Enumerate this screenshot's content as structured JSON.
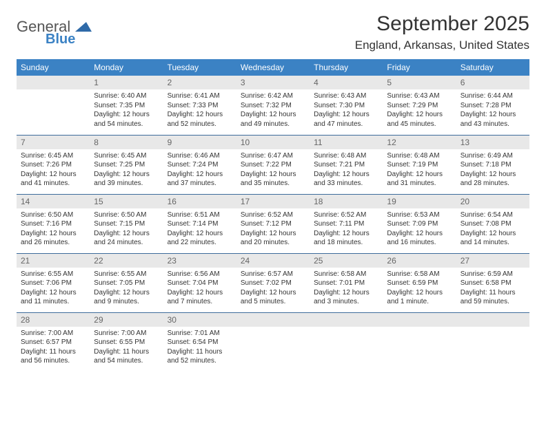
{
  "brand": {
    "general": "General",
    "blue": "Blue"
  },
  "title": "September 2025",
  "location": "England, Arkansas, United States",
  "colors": {
    "header_bg": "#3b82c4",
    "header_fg": "#ffffff",
    "daynum_bg": "#e8e8e8",
    "daynum_fg": "#666666",
    "rule": "#3b6a9a",
    "text": "#333333"
  },
  "weekdays": [
    "Sunday",
    "Monday",
    "Tuesday",
    "Wednesday",
    "Thursday",
    "Friday",
    "Saturday"
  ],
  "weeks": [
    [
      {
        "n": "",
        "sr": "",
        "ss": "",
        "dl": ""
      },
      {
        "n": "1",
        "sr": "Sunrise: 6:40 AM",
        "ss": "Sunset: 7:35 PM",
        "dl": "Daylight: 12 hours and 54 minutes."
      },
      {
        "n": "2",
        "sr": "Sunrise: 6:41 AM",
        "ss": "Sunset: 7:33 PM",
        "dl": "Daylight: 12 hours and 52 minutes."
      },
      {
        "n": "3",
        "sr": "Sunrise: 6:42 AM",
        "ss": "Sunset: 7:32 PM",
        "dl": "Daylight: 12 hours and 49 minutes."
      },
      {
        "n": "4",
        "sr": "Sunrise: 6:43 AM",
        "ss": "Sunset: 7:30 PM",
        "dl": "Daylight: 12 hours and 47 minutes."
      },
      {
        "n": "5",
        "sr": "Sunrise: 6:43 AM",
        "ss": "Sunset: 7:29 PM",
        "dl": "Daylight: 12 hours and 45 minutes."
      },
      {
        "n": "6",
        "sr": "Sunrise: 6:44 AM",
        "ss": "Sunset: 7:28 PM",
        "dl": "Daylight: 12 hours and 43 minutes."
      }
    ],
    [
      {
        "n": "7",
        "sr": "Sunrise: 6:45 AM",
        "ss": "Sunset: 7:26 PM",
        "dl": "Daylight: 12 hours and 41 minutes."
      },
      {
        "n": "8",
        "sr": "Sunrise: 6:45 AM",
        "ss": "Sunset: 7:25 PM",
        "dl": "Daylight: 12 hours and 39 minutes."
      },
      {
        "n": "9",
        "sr": "Sunrise: 6:46 AM",
        "ss": "Sunset: 7:24 PM",
        "dl": "Daylight: 12 hours and 37 minutes."
      },
      {
        "n": "10",
        "sr": "Sunrise: 6:47 AM",
        "ss": "Sunset: 7:22 PM",
        "dl": "Daylight: 12 hours and 35 minutes."
      },
      {
        "n": "11",
        "sr": "Sunrise: 6:48 AM",
        "ss": "Sunset: 7:21 PM",
        "dl": "Daylight: 12 hours and 33 minutes."
      },
      {
        "n": "12",
        "sr": "Sunrise: 6:48 AM",
        "ss": "Sunset: 7:19 PM",
        "dl": "Daylight: 12 hours and 31 minutes."
      },
      {
        "n": "13",
        "sr": "Sunrise: 6:49 AM",
        "ss": "Sunset: 7:18 PM",
        "dl": "Daylight: 12 hours and 28 minutes."
      }
    ],
    [
      {
        "n": "14",
        "sr": "Sunrise: 6:50 AM",
        "ss": "Sunset: 7:16 PM",
        "dl": "Daylight: 12 hours and 26 minutes."
      },
      {
        "n": "15",
        "sr": "Sunrise: 6:50 AM",
        "ss": "Sunset: 7:15 PM",
        "dl": "Daylight: 12 hours and 24 minutes."
      },
      {
        "n": "16",
        "sr": "Sunrise: 6:51 AM",
        "ss": "Sunset: 7:14 PM",
        "dl": "Daylight: 12 hours and 22 minutes."
      },
      {
        "n": "17",
        "sr": "Sunrise: 6:52 AM",
        "ss": "Sunset: 7:12 PM",
        "dl": "Daylight: 12 hours and 20 minutes."
      },
      {
        "n": "18",
        "sr": "Sunrise: 6:52 AM",
        "ss": "Sunset: 7:11 PM",
        "dl": "Daylight: 12 hours and 18 minutes."
      },
      {
        "n": "19",
        "sr": "Sunrise: 6:53 AM",
        "ss": "Sunset: 7:09 PM",
        "dl": "Daylight: 12 hours and 16 minutes."
      },
      {
        "n": "20",
        "sr": "Sunrise: 6:54 AM",
        "ss": "Sunset: 7:08 PM",
        "dl": "Daylight: 12 hours and 14 minutes."
      }
    ],
    [
      {
        "n": "21",
        "sr": "Sunrise: 6:55 AM",
        "ss": "Sunset: 7:06 PM",
        "dl": "Daylight: 12 hours and 11 minutes."
      },
      {
        "n": "22",
        "sr": "Sunrise: 6:55 AM",
        "ss": "Sunset: 7:05 PM",
        "dl": "Daylight: 12 hours and 9 minutes."
      },
      {
        "n": "23",
        "sr": "Sunrise: 6:56 AM",
        "ss": "Sunset: 7:04 PM",
        "dl": "Daylight: 12 hours and 7 minutes."
      },
      {
        "n": "24",
        "sr": "Sunrise: 6:57 AM",
        "ss": "Sunset: 7:02 PM",
        "dl": "Daylight: 12 hours and 5 minutes."
      },
      {
        "n": "25",
        "sr": "Sunrise: 6:58 AM",
        "ss": "Sunset: 7:01 PM",
        "dl": "Daylight: 12 hours and 3 minutes."
      },
      {
        "n": "26",
        "sr": "Sunrise: 6:58 AM",
        "ss": "Sunset: 6:59 PM",
        "dl": "Daylight: 12 hours and 1 minute."
      },
      {
        "n": "27",
        "sr": "Sunrise: 6:59 AM",
        "ss": "Sunset: 6:58 PM",
        "dl": "Daylight: 11 hours and 59 minutes."
      }
    ],
    [
      {
        "n": "28",
        "sr": "Sunrise: 7:00 AM",
        "ss": "Sunset: 6:57 PM",
        "dl": "Daylight: 11 hours and 56 minutes."
      },
      {
        "n": "29",
        "sr": "Sunrise: 7:00 AM",
        "ss": "Sunset: 6:55 PM",
        "dl": "Daylight: 11 hours and 54 minutes."
      },
      {
        "n": "30",
        "sr": "Sunrise: 7:01 AM",
        "ss": "Sunset: 6:54 PM",
        "dl": "Daylight: 11 hours and 52 minutes."
      },
      {
        "n": "",
        "sr": "",
        "ss": "",
        "dl": ""
      },
      {
        "n": "",
        "sr": "",
        "ss": "",
        "dl": ""
      },
      {
        "n": "",
        "sr": "",
        "ss": "",
        "dl": ""
      },
      {
        "n": "",
        "sr": "",
        "ss": "",
        "dl": ""
      }
    ]
  ]
}
